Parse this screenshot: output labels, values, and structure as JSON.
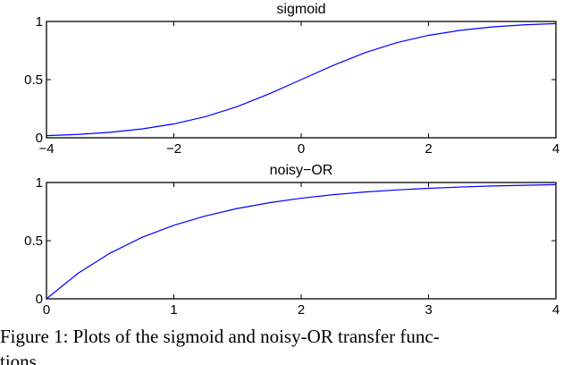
{
  "chart_data": [
    {
      "type": "line",
      "title": "sigmoid",
      "xlabel": "",
      "ylabel": "",
      "xlim": [
        -4,
        4
      ],
      "ylim": [
        0,
        1
      ],
      "xticks": [
        "−4",
        "−2",
        "0",
        "2",
        "4"
      ],
      "xtick_values": [
        -4,
        -2,
        0,
        2,
        4
      ],
      "yticks": [
        "0",
        "0.5",
        "1"
      ],
      "ytick_values": [
        0,
        0.5,
        1
      ],
      "grid": false,
      "line_color": "#0000ff",
      "series": [
        {
          "x": [
            -4,
            -3.5,
            -3,
            -2.5,
            -2,
            -1.5,
            -1,
            -0.5,
            0,
            0.5,
            1,
            1.5,
            2,
            2.5,
            3,
            3.5,
            4
          ],
          "values": [
            0.018,
            0.029,
            0.047,
            0.076,
            0.119,
            0.182,
            0.269,
            0.378,
            0.5,
            0.622,
            0.731,
            0.818,
            0.881,
            0.924,
            0.953,
            0.971,
            0.982
          ]
        }
      ]
    },
    {
      "type": "line",
      "title": "noisy−OR",
      "xlabel": "",
      "ylabel": "",
      "xlim": [
        0,
        4
      ],
      "ylim": [
        0,
        1
      ],
      "xticks": [
        "0",
        "1",
        "2",
        "3",
        "4"
      ],
      "xtick_values": [
        0,
        1,
        2,
        3,
        4
      ],
      "yticks": [
        "0",
        "0.5",
        "1"
      ],
      "ytick_values": [
        0,
        0.5,
        1
      ],
      "grid": false,
      "line_color": "#0000ff",
      "series": [
        {
          "x": [
            0,
            0.25,
            0.5,
            0.75,
            1,
            1.25,
            1.5,
            1.75,
            2,
            2.25,
            2.5,
            2.75,
            3,
            3.25,
            3.5,
            3.75,
            4
          ],
          "values": [
            0,
            0.221,
            0.393,
            0.528,
            0.632,
            0.713,
            0.777,
            0.826,
            0.865,
            0.895,
            0.918,
            0.936,
            0.95,
            0.961,
            0.97,
            0.976,
            0.982
          ]
        }
      ]
    }
  ],
  "caption": {
    "line1": "Figure 1: Plots of the sigmoid and noisy-OR transfer func-",
    "line2": "tions."
  }
}
